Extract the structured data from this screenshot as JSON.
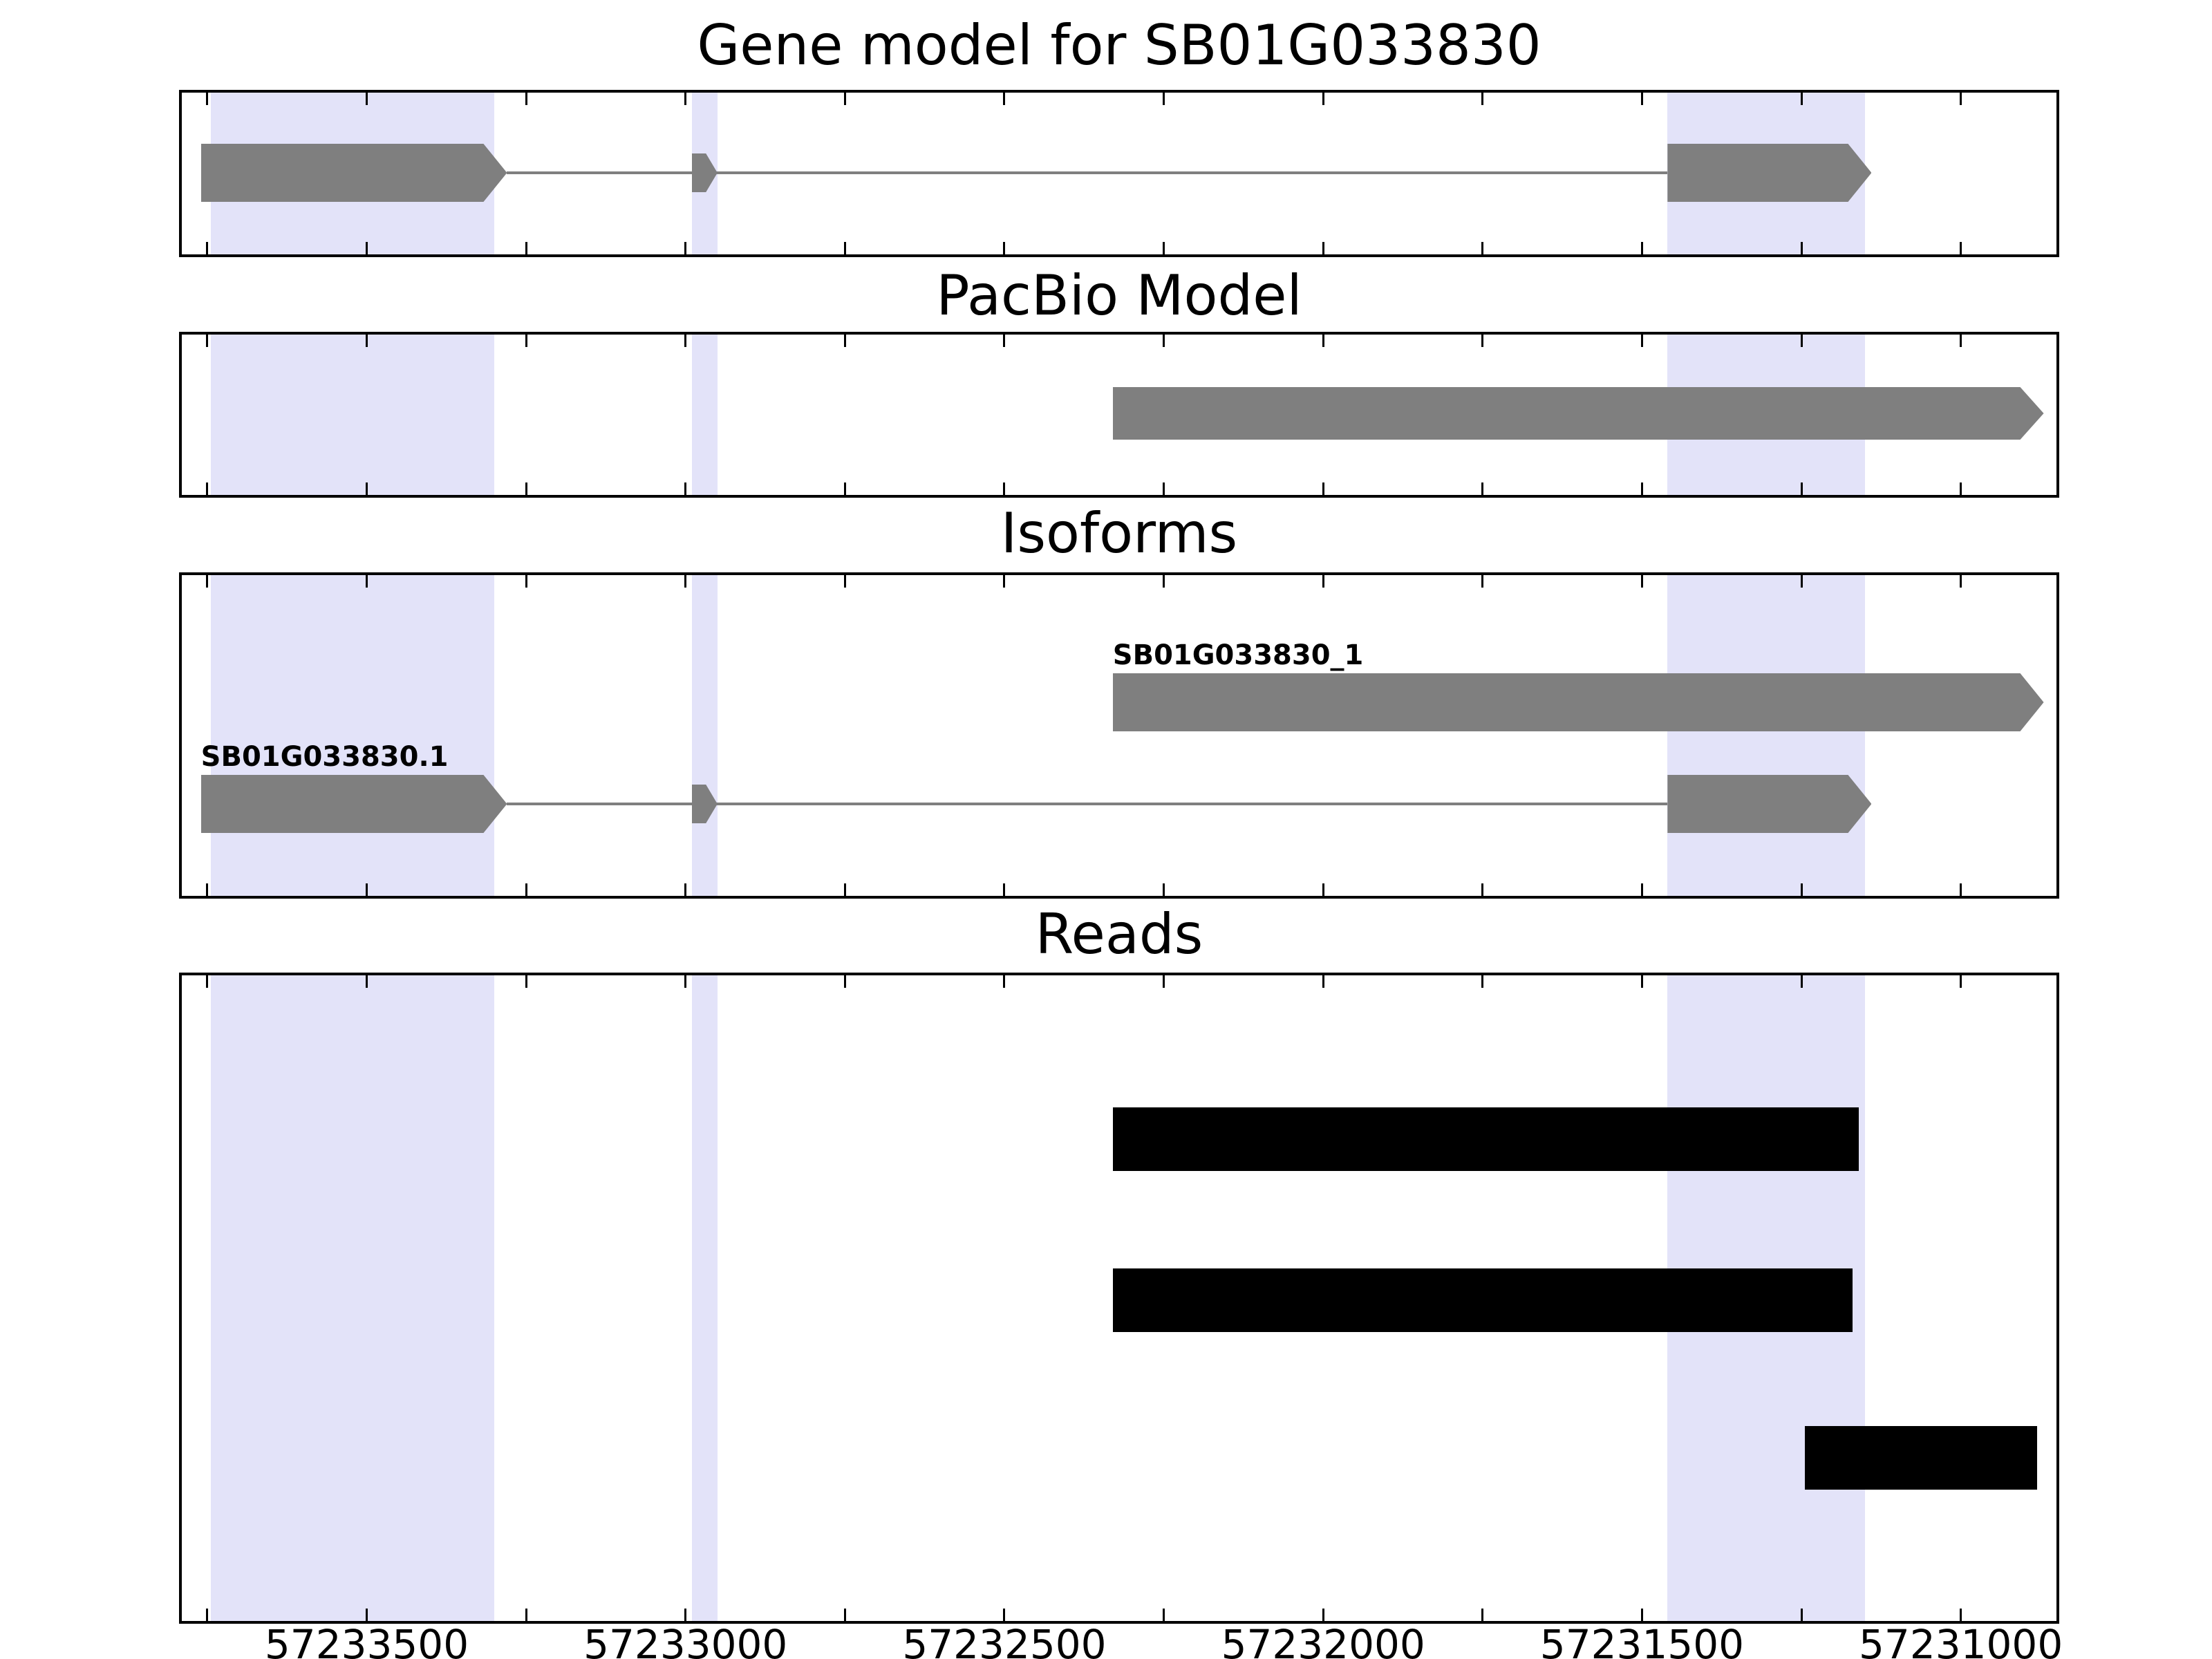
{
  "figure": {
    "background": "#ffffff",
    "border_color": "#000000",
    "feature_color": "#7f7f7f",
    "read_color": "#000000",
    "highlight_color": "#e3e3f9"
  },
  "chart_data": {
    "type": "genome-browser",
    "gene_id": "SB01G033830",
    "x_axis": {
      "lim_left": 57233790,
      "lim_right": 57230850,
      "reversed": true,
      "major_ticks": [
        57233500,
        57233000,
        57232500,
        57232000,
        57231500,
        57231000
      ],
      "major_tick_labels": [
        "57233500",
        "57233000",
        "57232500",
        "57232000",
        "57231500",
        "57231000"
      ],
      "minor_tick_interval": 250,
      "minor_tick_start": 57233750,
      "minor_tick_end": 57231000
    },
    "highlights": [
      {
        "start": 57233745,
        "end": 57233300
      },
      {
        "start": 57232990,
        "end": 57232950
      },
      {
        "start": 57231460,
        "end": 57231150
      }
    ],
    "panels": [
      {
        "id": "gene-model",
        "title": "Gene model for SB01G033830",
        "features": [
          {
            "kind": "line",
            "start": 57233280,
            "end": 57231460
          },
          {
            "kind": "exon-arrow",
            "start": 57233760,
            "end": 57233280
          },
          {
            "kind": "exon-small",
            "start": 57232990,
            "end": 57232950
          },
          {
            "kind": "exon-arrow",
            "start": 57231460,
            "end": 57231140
          }
        ]
      },
      {
        "id": "pacbio-model",
        "title": "PacBio Model",
        "features": [
          {
            "kind": "exon-arrow",
            "start": 57232330,
            "end": 57230870
          }
        ]
      },
      {
        "id": "isoforms",
        "title": "Isoforms",
        "isoforms": [
          {
            "name": "SB01G033830_1",
            "features": [
              {
                "kind": "exon-arrow",
                "start": 57232330,
                "end": 57230870
              }
            ]
          },
          {
            "name": "SB01G033830.1",
            "features": [
              {
                "kind": "line",
                "start": 57233280,
                "end": 57231460
              },
              {
                "kind": "exon-arrow",
                "start": 57233760,
                "end": 57233280
              },
              {
                "kind": "exon-small",
                "start": 57232990,
                "end": 57232950
              },
              {
                "kind": "exon-arrow",
                "start": 57231460,
                "end": 57231140
              }
            ]
          }
        ]
      },
      {
        "id": "reads",
        "title": "Reads",
        "reads": [
          {
            "start": 57232330,
            "end": 57231160
          },
          {
            "start": 57232330,
            "end": 57231170
          },
          {
            "start": 57231245,
            "end": 57230880
          }
        ]
      }
    ]
  }
}
